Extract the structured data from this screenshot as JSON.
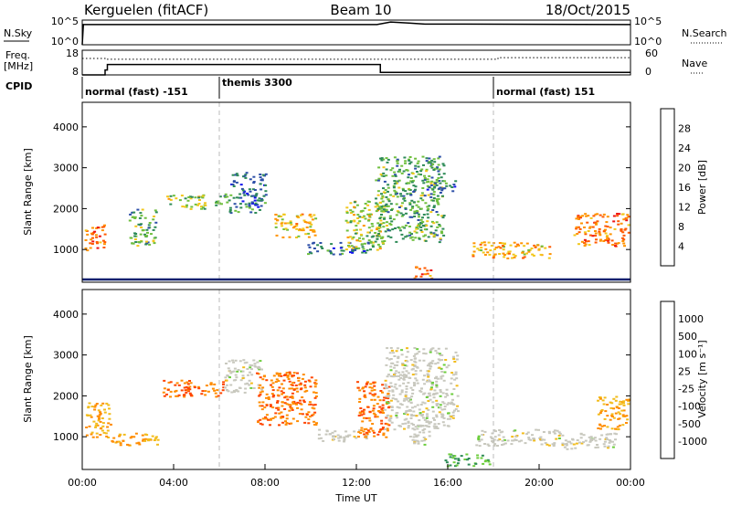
{
  "header": {
    "station": "Kerguelen (fitACF)",
    "beam": "Beam 10",
    "date": "18/Oct/2015"
  },
  "panels": {
    "nsky": {
      "label": "N.Sky",
      "right_label": "N.Search",
      "y_ticks_left": [
        "10^5",
        "10^0"
      ],
      "y_ticks_right": [
        "10^5",
        "10^0"
      ]
    },
    "freq": {
      "label_line1": "Freq.",
      "label_line2": "[MHz]",
      "right_label": "Nave",
      "y_ticks_left": [
        "18",
        "8"
      ],
      "y_ticks_right": [
        "60",
        "0"
      ]
    },
    "cpid": {
      "label": "CPID",
      "modes": [
        {
          "name": "normal (fast) -151",
          "start_h": 0,
          "end_h": 6
        },
        {
          "name": "themis 3300",
          "start_h": 6,
          "end_h": 18
        },
        {
          "name": "normal (fast) 151",
          "start_h": 18,
          "end_h": 24
        }
      ]
    },
    "power": {
      "ylabel": "Slant Range [km]",
      "cbar_label": "Power [dB]",
      "cbar_ticks": [
        "28",
        "24",
        "20",
        "16",
        "12",
        "8",
        "4"
      ],
      "cbar_colors": [
        "#ee1111",
        "#ff5a00",
        "#ff9300",
        "#f2c71c",
        "#6fbf3e",
        "#2e8b57",
        "#2d4fa8",
        "#1212ee"
      ]
    },
    "velocity": {
      "ylabel": "Slant Range [km]",
      "cbar_label": "Velocity [m s⁻¹]",
      "cbar_ticks": [
        "1000",
        "500",
        "100",
        "25",
        "-25",
        "-100",
        "-500",
        "-1000"
      ],
      "cbar_colors": [
        "#1f3fc4",
        "#2f6aa8",
        "#2e8b57",
        "#6ccd3c",
        "#c8c8be",
        "#f2bc1c",
        "#ff8c00",
        "#ff4500",
        "#ee1111"
      ]
    }
  },
  "x_axis": {
    "label": "Time UT",
    "ticks": [
      "00:00",
      "04:00",
      "08:00",
      "12:00",
      "16:00",
      "20:00",
      "00:00"
    ]
  },
  "chart_data": {
    "type": "heatmap",
    "xlabel": "Time UT",
    "ylabel": "Slant Range [km]",
    "xlim": [
      0,
      24
    ],
    "ylim": [
      200,
      4600
    ],
    "y_ticks": [
      1000,
      2000,
      3000,
      4000
    ],
    "mode_change_hours": [
      6,
      18
    ],
    "nsky_trace": [
      [
        0,
        0.0
      ],
      [
        0.05,
        0.82
      ],
      [
        12.9,
        0.82
      ],
      [
        13.5,
        0.92
      ],
      [
        14.3,
        0.88
      ],
      [
        15.0,
        0.84
      ],
      [
        24,
        0.82
      ]
    ],
    "freq_mhz": [
      [
        0,
        8
      ],
      [
        1,
        10
      ],
      [
        1.1,
        12.2
      ],
      [
        13.0,
        12.2
      ],
      [
        13.05,
        9.0
      ],
      [
        24,
        9.0
      ]
    ],
    "nave": [
      [
        0,
        40
      ],
      [
        0.9,
        40
      ],
      [
        1.0,
        38
      ],
      [
        18,
        38
      ],
      [
        18.2,
        42
      ],
      [
        24,
        42
      ]
    ],
    "power_echoes": [
      {
        "t0": 0.1,
        "t1": 1.0,
        "r0": 1000,
        "r1": 1650,
        "level": 24
      },
      {
        "t0": 2.0,
        "t1": 3.2,
        "r0": 1100,
        "r1": 2000,
        "level": 12
      },
      {
        "t0": 3.6,
        "t1": 5.4,
        "r0": 2000,
        "r1": 2350,
        "level": 16
      },
      {
        "t0": 5.8,
        "t1": 6.4,
        "r0": 2100,
        "r1": 2500,
        "level": 12
      },
      {
        "t0": 6.4,
        "t1": 8.0,
        "r0": 1900,
        "r1": 2900,
        "level": 8
      },
      {
        "t0": 8.4,
        "t1": 10.2,
        "r0": 1300,
        "r1": 1900,
        "level": 20
      },
      {
        "t0": 9.8,
        "t1": 12.6,
        "r0": 900,
        "r1": 1200,
        "level": 8
      },
      {
        "t0": 11.5,
        "t1": 13.2,
        "r0": 1000,
        "r1": 2200,
        "level": 16
      },
      {
        "t0": 12.8,
        "t1": 15.8,
        "r0": 1200,
        "r1": 3300,
        "level": 12
      },
      {
        "t0": 14.5,
        "t1": 15.3,
        "r0": 300,
        "r1": 600,
        "level": 24
      },
      {
        "t0": 15.0,
        "t1": 16.3,
        "r0": 2400,
        "r1": 2700,
        "level": 8
      },
      {
        "t0": 17.0,
        "t1": 20.5,
        "r0": 800,
        "r1": 1200,
        "level": 20
      },
      {
        "t0": 21.5,
        "t1": 23.9,
        "r0": 1100,
        "r1": 1900,
        "level": 24
      }
    ],
    "velocity_echoes": [
      {
        "t0": 0.1,
        "t1": 1.2,
        "r0": 1000,
        "r1": 1850,
        "velocity": -100
      },
      {
        "t0": 1.2,
        "t1": 3.4,
        "r0": 800,
        "r1": 1100,
        "velocity": -100
      },
      {
        "t0": 3.5,
        "t1": 6.3,
        "r0": 2000,
        "r1": 2400,
        "velocity": -500
      },
      {
        "t0": 6.2,
        "t1": 7.8,
        "r0": 2100,
        "r1": 2900,
        "velocity": 0
      },
      {
        "t0": 7.6,
        "t1": 10.2,
        "r0": 1300,
        "r1": 2600,
        "velocity": -500
      },
      {
        "t0": 10.3,
        "t1": 12.4,
        "r0": 900,
        "r1": 1200,
        "velocity": 0
      },
      {
        "t0": 12.0,
        "t1": 13.4,
        "r0": 1000,
        "r1": 2400,
        "velocity": -500
      },
      {
        "t0": 13.2,
        "t1": 16.4,
        "r0": 1200,
        "r1": 3200,
        "velocity": 0
      },
      {
        "t0": 14.2,
        "t1": 15.2,
        "r0": 800,
        "r1": 1300,
        "velocity": 0
      },
      {
        "t0": 15.8,
        "t1": 17.8,
        "r0": 300,
        "r1": 600,
        "velocity": 100
      },
      {
        "t0": 17.2,
        "t1": 21.0,
        "r0": 800,
        "r1": 1200,
        "velocity": 0
      },
      {
        "t0": 21.0,
        "t1": 23.5,
        "r0": 700,
        "r1": 1100,
        "velocity": 0
      },
      {
        "t0": 22.5,
        "t1": 23.9,
        "r0": 1200,
        "r1": 2000,
        "velocity": -100
      }
    ]
  }
}
